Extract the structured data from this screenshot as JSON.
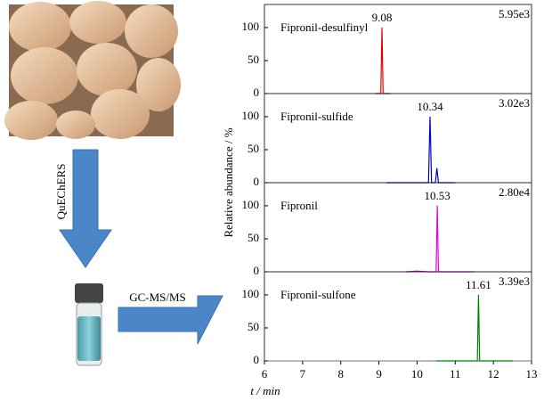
{
  "workflow": {
    "step1": "QuEChERS",
    "step2": "GC-MS/MS"
  },
  "chart_data": {
    "type": "line",
    "xlabel": "t / min",
    "ylabel": "Relative abundance / %",
    "xlim": [
      6,
      13
    ],
    "xticks": [
      6,
      7,
      8,
      9,
      10,
      11,
      12,
      13
    ],
    "ylim": [
      0,
      135
    ],
    "yticks": [
      0,
      50,
      100
    ],
    "series": [
      {
        "name": "Fipronil-desulfinyl",
        "color": "#e00000",
        "peak": 9.08,
        "intensity": "5.95e3",
        "x": [
          8.9,
          9.05,
          9.08,
          9.11,
          9.3
        ],
        "values": [
          0,
          0,
          100,
          0,
          0
        ]
      },
      {
        "name": "Fipronil-sulfide",
        "color": "#0000cc",
        "peak": 10.34,
        "intensity": "3.02e3",
        "x": [
          9.2,
          10.3,
          10.34,
          10.38,
          10.48,
          10.52,
          10.56,
          11.0
        ],
        "values": [
          0,
          0,
          100,
          0,
          0,
          22,
          0,
          0
        ]
      },
      {
        "name": "Fipronil",
        "color": "#e000e0",
        "peak": 10.53,
        "intensity": "2.80e4",
        "x": [
          9.7,
          10.0,
          10.3,
          10.5,
          10.53,
          10.56,
          11.5
        ],
        "values": [
          0,
          1,
          0,
          0,
          100,
          0,
          0
        ]
      },
      {
        "name": "Fipronil-sulfone",
        "color": "#008000",
        "peak": 11.61,
        "intensity": "3.39e3",
        "x": [
          10.5,
          11.58,
          11.61,
          11.64,
          12.5
        ],
        "values": [
          0,
          0,
          100,
          0,
          0
        ]
      }
    ]
  }
}
